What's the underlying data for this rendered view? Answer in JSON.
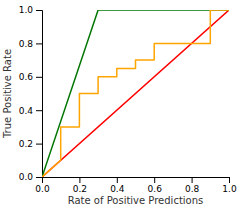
{
  "chart_data": {
    "type": "line",
    "xlabel": "Rate of Positive Predictions",
    "ylabel": "True Positive Rate",
    "xlim": [
      0.0,
      1.0
    ],
    "ylim": [
      0.0,
      1.0
    ],
    "xticks": [
      {
        "value": 0.0,
        "label": "0.0"
      },
      0.2,
      0.4,
      0.6,
      0.8,
      {
        "value": 1.0,
        "label": "1.0"
      }
    ],
    "yticks": [
      {
        "value": 0.0,
        "label": "0.0"
      },
      0.2,
      0.4,
      0.6,
      0.8,
      {
        "value": 1.0,
        "label": "1.0"
      }
    ],
    "series": [
      {
        "color": "#FF0000",
        "x": [
          0.0,
          1.0
        ],
        "values": [
          0.0,
          1.0
        ]
      },
      {
        "color": "#007700",
        "x": [
          0.0,
          0.3,
          1.0
        ],
        "values": [
          0.0,
          1.0,
          1.0
        ]
      },
      {
        "color": "#FFA500",
        "x": [
          0.0,
          0.1,
          0.1,
          0.2,
          0.2,
          0.3,
          0.3,
          0.4,
          0.4,
          0.5,
          0.5,
          0.6,
          0.6,
          0.9,
          0.9,
          1.0
        ],
        "values": [
          0.0,
          0.1,
          0.3,
          0.3,
          0.5,
          0.5,
          0.6,
          0.6,
          0.65,
          0.65,
          0.7,
          0.7,
          0.8,
          0.8,
          1.0,
          1.0
        ]
      }
    ]
  }
}
